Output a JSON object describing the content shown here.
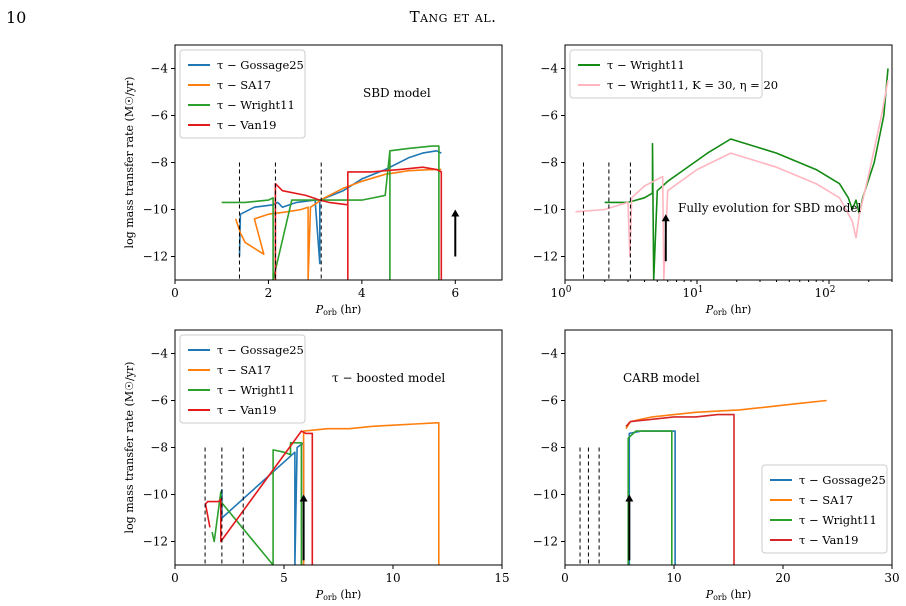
{
  "page": {
    "number": "10",
    "running_head": "Tang et al."
  },
  "colors": {
    "gossage": "#1f77b4",
    "sa17": "#ff7f0e",
    "wright": "#2ca02c",
    "van19": "#d62728",
    "wright_mod": "#ffb6c1",
    "wright_dark": "#138a13"
  },
  "chart_data": [
    {
      "id": "sbd",
      "type": "line",
      "xlabel": "P_orb (hr)",
      "ylabel": "log mass transfer rate (M☉/yr)",
      "xlim": [
        0,
        7
      ],
      "ylim": [
        -13,
        -3
      ],
      "xticks": [
        "0",
        "2",
        "4",
        "6"
      ],
      "yticks": [
        "-4",
        "-6",
        "-8",
        "-10",
        "-12"
      ],
      "annotation": "SBD model",
      "legend_position": "top-left",
      "vlines": [
        1.38,
        2.15,
        3.13
      ],
      "arrow": {
        "x": 6.0,
        "y_from": -12.0,
        "y_to": -10.0
      },
      "series": [
        {
          "name": "τ − Gossage25",
          "color": "#1f77b4",
          "points": [
            [
              1.38,
              -12.0
            ],
            [
              1.4,
              -10.2
            ],
            [
              1.7,
              -9.9
            ],
            [
              2.1,
              -9.8
            ],
            [
              2.2,
              -9.7
            ],
            [
              2.3,
              -9.9
            ],
            [
              2.6,
              -9.7
            ],
            [
              3.0,
              -9.6
            ],
            [
              3.1,
              -12.3
            ],
            [
              3.1,
              -9.6
            ],
            [
              3.6,
              -9.2
            ],
            [
              4.0,
              -8.7
            ],
            [
              4.5,
              -8.3
            ],
            [
              5.0,
              -7.8
            ],
            [
              5.3,
              -7.6
            ],
            [
              5.6,
              -7.5
            ],
            [
              5.7,
              -7.6
            ]
          ]
        },
        {
          "name": "τ − SA17",
          "color": "#ff7f0e",
          "points": [
            [
              1.3,
              -10.4
            ],
            [
              1.4,
              -11.0
            ],
            [
              1.5,
              -11.4
            ],
            [
              1.9,
              -11.9
            ],
            [
              1.7,
              -10.4
            ],
            [
              2.0,
              -10.2
            ],
            [
              2.4,
              -10.1
            ],
            [
              2.7,
              -10.0
            ],
            [
              2.85,
              -9.9
            ],
            [
              2.85,
              -13.0
            ],
            [
              2.9,
              -9.9
            ],
            [
              3.2,
              -9.5
            ],
            [
              3.6,
              -9.1
            ],
            [
              4.0,
              -8.8
            ],
            [
              4.5,
              -8.5
            ],
            [
              5.0,
              -8.35
            ],
            [
              5.5,
              -8.3
            ],
            [
              5.7,
              -8.3
            ]
          ]
        },
        {
          "name": "τ − Wright11",
          "color": "#2ca02c",
          "points": [
            [
              1.0,
              -9.7
            ],
            [
              1.5,
              -9.7
            ],
            [
              2.0,
              -9.6
            ],
            [
              2.1,
              -9.5
            ],
            [
              2.1,
              -13.0
            ],
            [
              2.5,
              -9.6
            ],
            [
              3.0,
              -9.6
            ],
            [
              3.5,
              -9.6
            ],
            [
              4.0,
              -9.6
            ],
            [
              4.5,
              -9.4
            ],
            [
              4.6,
              -7.5
            ],
            [
              4.6,
              -13.0
            ],
            [
              4.6,
              -7.5
            ],
            [
              5.0,
              -7.4
            ],
            [
              5.5,
              -7.3
            ],
            [
              5.65,
              -7.3
            ],
            [
              5.65,
              -13.0
            ]
          ]
        },
        {
          "name": "τ − Van19",
          "color": "#e31a1c",
          "points": [
            [
              2.15,
              -13.0
            ],
            [
              2.15,
              -8.9
            ],
            [
              2.3,
              -9.2
            ],
            [
              2.8,
              -9.4
            ],
            [
              3.1,
              -9.6
            ],
            [
              3.3,
              -9.7
            ],
            [
              3.7,
              -9.8
            ],
            [
              3.7,
              -13.0
            ],
            [
              3.7,
              -8.4
            ],
            [
              4.2,
              -8.4
            ],
            [
              4.8,
              -8.3
            ],
            [
              5.3,
              -8.2
            ],
            [
              5.6,
              -8.3
            ],
            [
              5.7,
              -8.4
            ],
            [
              5.7,
              -13.0
            ]
          ]
        }
      ]
    },
    {
      "id": "full",
      "type": "line",
      "xlabel": "P_orb (hr)",
      "ylabel": "",
      "xscale": "log",
      "xlim": [
        1,
        300
      ],
      "ylim": [
        -13,
        -3
      ],
      "xticks": [
        "10^0",
        "10^1",
        "10^2"
      ],
      "yticks": [
        "-4",
        "-6",
        "-8",
        "-10",
        "-12"
      ],
      "annotation": "Fully evolution for SBD model",
      "legend_position": "top-left",
      "vlines": [
        1.38,
        2.15,
        3.13
      ],
      "arrow": {
        "x": 5.8,
        "y_from": -12.2,
        "y_to": -10.2
      },
      "series": [
        {
          "name": "τ − Wright11",
          "color": "#138a13",
          "points": [
            [
              2.0,
              -9.7
            ],
            [
              3.0,
              -9.7
            ],
            [
              4.0,
              -9.5
            ],
            [
              4.6,
              -9.3
            ],
            [
              4.6,
              -7.2
            ],
            [
              4.7,
              -13.0
            ],
            [
              5.0,
              -9.2
            ],
            [
              5.5,
              -9.0
            ],
            [
              6.0,
              -8.8
            ],
            [
              8.0,
              -8.3
            ],
            [
              12.0,
              -7.6
            ],
            [
              18.0,
              -7.0
            ],
            [
              40.0,
              -7.6
            ],
            [
              80.0,
              -8.3
            ],
            [
              120.0,
              -8.9
            ],
            [
              140.0,
              -9.5
            ],
            [
              150.0,
              -10.0
            ],
            [
              160.0,
              -9.6
            ],
            [
              170.0,
              -10.2
            ],
            [
              180.0,
              -9.5
            ],
            [
              220.0,
              -8.0
            ],
            [
              260.0,
              -6.0
            ],
            [
              280.0,
              -4.0
            ]
          ]
        },
        {
          "name": "τ − Wright11, K = 30, η = 20",
          "color": "#ffb6c1",
          "points": [
            [
              1.2,
              -10.1
            ],
            [
              2.0,
              -10.0
            ],
            [
              3.0,
              -9.7
            ],
            [
              3.1,
              -12.0
            ],
            [
              3.2,
              -9.5
            ],
            [
              4.0,
              -9.0
            ],
            [
              5.5,
              -8.6
            ],
            [
              5.6,
              -13.0
            ],
            [
              6.0,
              -9.2
            ],
            [
              10.0,
              -8.3
            ],
            [
              18.0,
              -7.6
            ],
            [
              40.0,
              -8.2
            ],
            [
              80.0,
              -8.9
            ],
            [
              120.0,
              -9.5
            ],
            [
              150.0,
              -10.5
            ],
            [
              160.0,
              -11.2
            ],
            [
              170.0,
              -10.2
            ],
            [
              200.0,
              -8.5
            ],
            [
              250.0,
              -6.0
            ],
            [
              280.0,
              -4.5
            ]
          ]
        }
      ]
    },
    {
      "id": "boosted",
      "type": "line",
      "xlabel": "P_orb (hr)",
      "ylabel": "log mass transfer rate (M☉/yr)",
      "xlim": [
        0,
        15
      ],
      "ylim": [
        -13,
        -3
      ],
      "xticks": [
        "0",
        "5",
        "10",
        "15"
      ],
      "yticks": [
        "-4",
        "-6",
        "-8",
        "-10",
        "-12"
      ],
      "annotation": "τ − boosted model",
      "legend_position": "top-left",
      "vlines": [
        1.38,
        2.15,
        3.13
      ],
      "arrow": {
        "x": 5.9,
        "y_from": -12.8,
        "y_to": -10.0
      },
      "series": [
        {
          "name": "τ − Gossage25",
          "color": "#1f77b4",
          "points": [
            [
              2.1,
              -10.0
            ],
            [
              2.15,
              -9.8
            ],
            [
              2.15,
              -11.0
            ],
            [
              5.5,
              -8.2
            ],
            [
              5.5,
              -13.0
            ],
            [
              5.6,
              -8.0
            ],
            [
              5.9,
              -7.8
            ],
            [
              5.9,
              -13.0
            ]
          ]
        },
        {
          "name": "τ − SA17",
          "color": "#ff7f0e",
          "points": [
            [
              5.9,
              -13.0
            ],
            [
              5.9,
              -7.3
            ],
            [
              7.0,
              -7.2
            ],
            [
              8.0,
              -7.2
            ],
            [
              9.0,
              -7.1
            ],
            [
              10.0,
              -7.05
            ],
            [
              11.0,
              -7.0
            ],
            [
              12.0,
              -6.95
            ],
            [
              12.1,
              -6.95
            ],
            [
              12.1,
              -13.0
            ]
          ]
        },
        {
          "name": "τ − Wright11",
          "color": "#2ca02c",
          "points": [
            [
              1.7,
              -11.6
            ],
            [
              1.8,
              -12.0
            ],
            [
              2.1,
              -9.9
            ],
            [
              2.1,
              -10.3
            ],
            [
              4.5,
              -13.0
            ],
            [
              4.5,
              -8.1
            ],
            [
              5.0,
              -8.2
            ],
            [
              5.3,
              -8.3
            ],
            [
              5.3,
              -7.8
            ],
            [
              5.8,
              -7.8
            ],
            [
              5.8,
              -13.0
            ]
          ]
        },
        {
          "name": "τ − Van19",
          "color": "#e31a1c",
          "points": [
            [
              1.6,
              -11.4
            ],
            [
              1.4,
              -10.4
            ],
            [
              1.5,
              -10.3
            ],
            [
              2.0,
              -10.3
            ],
            [
              2.1,
              -10.2
            ],
            [
              2.1,
              -12.0
            ],
            [
              5.8,
              -7.3
            ],
            [
              6.0,
              -7.4
            ],
            [
              6.2,
              -7.4
            ],
            [
              6.3,
              -7.4
            ],
            [
              6.3,
              -13.0
            ]
          ]
        }
      ]
    },
    {
      "id": "carb",
      "type": "line",
      "xlabel": "P_orb (hr)",
      "ylabel": "",
      "xlim": [
        0,
        30
      ],
      "ylim": [
        -13,
        -3
      ],
      "xticks": [
        "0",
        "10",
        "20",
        "30"
      ],
      "yticks": [
        "-4",
        "-6",
        "-8",
        "-10",
        "-12"
      ],
      "annotation": "CARB model",
      "legend_position": "bottom-right",
      "vlines": [
        1.38,
        2.15,
        3.13
      ],
      "arrow": {
        "x": 5.9,
        "y_from": -12.8,
        "y_to": -10.0
      },
      "series": [
        {
          "name": "τ − Gossage25",
          "color": "#1f77b4",
          "points": [
            [
              5.9,
              -13.0
            ],
            [
              5.9,
              -7.4
            ],
            [
              7.0,
              -7.3
            ],
            [
              9.0,
              -7.3
            ],
            [
              10.1,
              -7.3
            ],
            [
              10.1,
              -13.0
            ]
          ]
        },
        {
          "name": "τ − SA17",
          "color": "#ff7f0e",
          "points": [
            [
              5.6,
              -7.2
            ],
            [
              6.0,
              -6.9
            ],
            [
              8.0,
              -6.7
            ],
            [
              10.0,
              -6.6
            ],
            [
              12.0,
              -6.5
            ],
            [
              14.0,
              -6.45
            ],
            [
              16.0,
              -6.4
            ],
            [
              18.0,
              -6.3
            ],
            [
              20.0,
              -6.2
            ],
            [
              22.0,
              -6.1
            ],
            [
              24.0,
              -6.0
            ]
          ]
        },
        {
          "name": "τ − Wright11",
          "color": "#2ca02c",
          "points": [
            [
              5.8,
              -13.0
            ],
            [
              5.8,
              -7.6
            ],
            [
              6.5,
              -7.3
            ],
            [
              8.0,
              -7.3
            ],
            [
              9.8,
              -7.3
            ],
            [
              9.8,
              -13.0
            ]
          ]
        },
        {
          "name": "τ − Van19",
          "color": "#d62728",
          "points": [
            [
              5.6,
              -7.1
            ],
            [
              6.0,
              -6.9
            ],
            [
              8.0,
              -6.8
            ],
            [
              10.0,
              -6.7
            ],
            [
              12.0,
              -6.7
            ],
            [
              14.0,
              -6.6
            ],
            [
              15.5,
              -6.6
            ],
            [
              15.5,
              -13.0
            ]
          ]
        }
      ]
    }
  ]
}
